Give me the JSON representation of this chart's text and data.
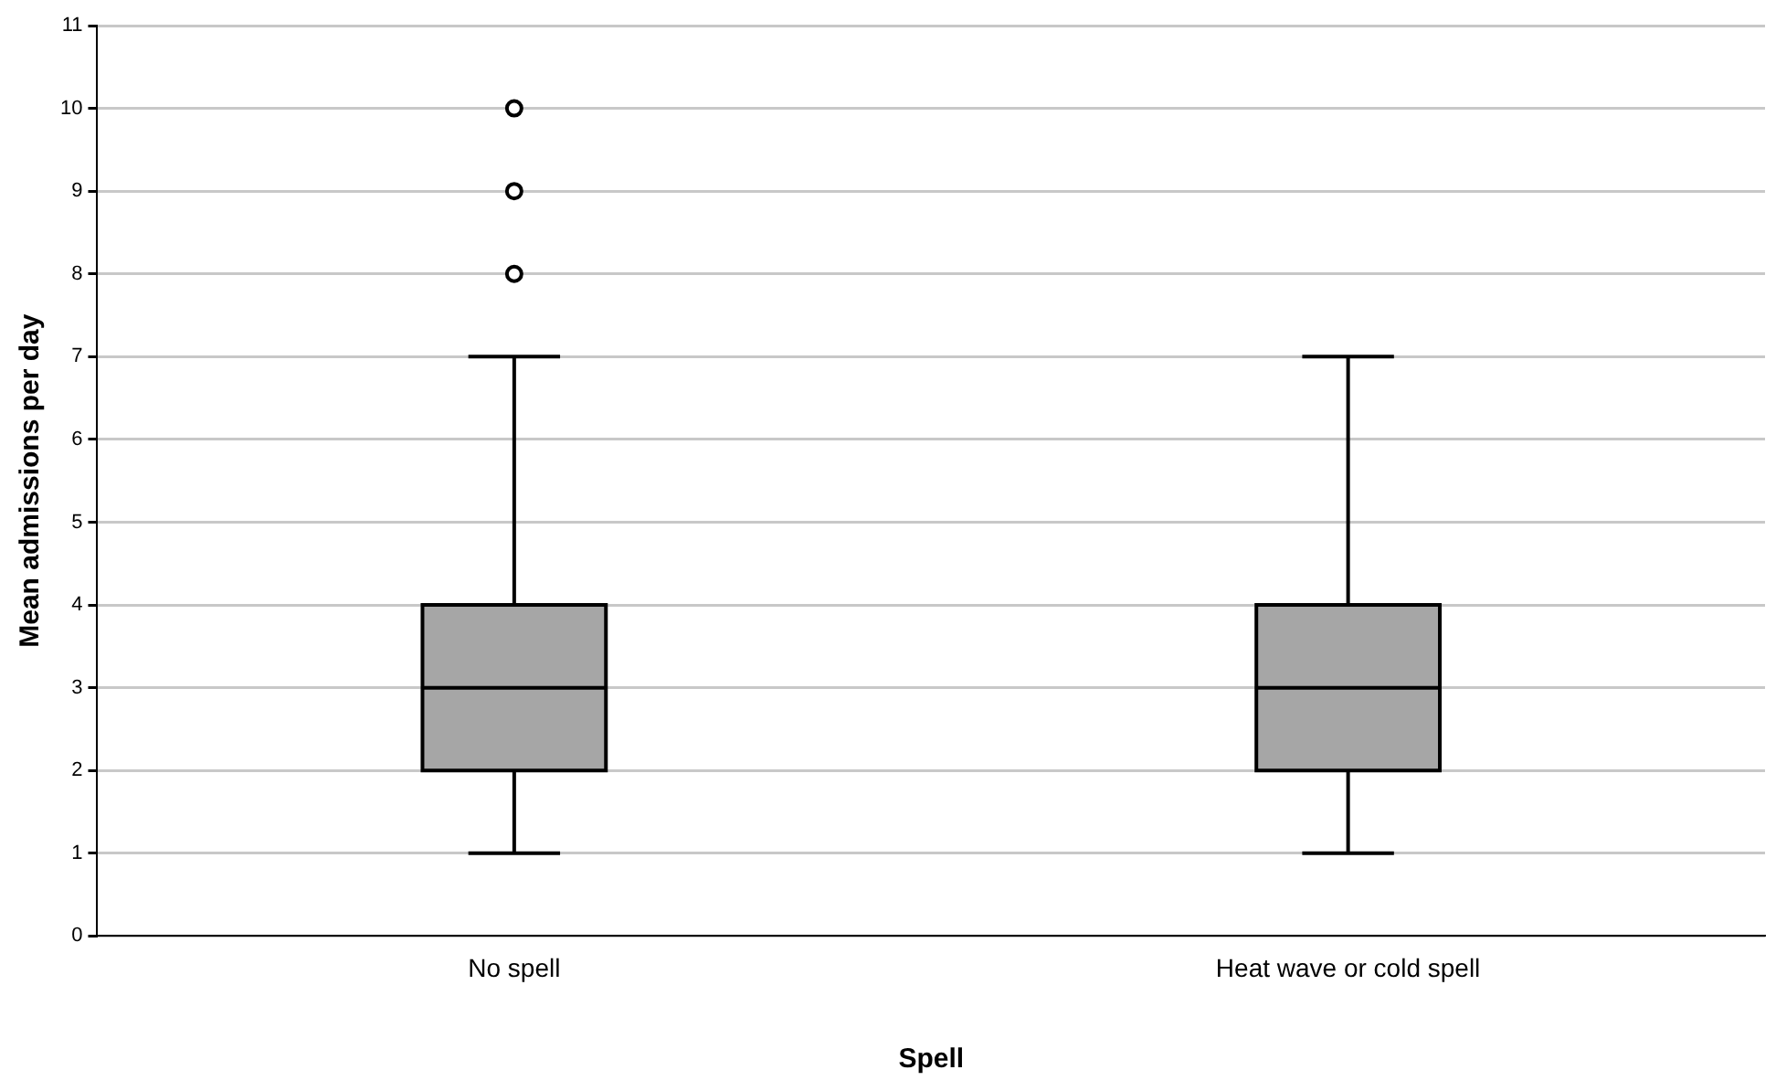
{
  "chart_data": {
    "type": "box",
    "xlabel": "Spell",
    "ylabel": "Mean admissions per day",
    "categories": [
      "No spell",
      "Heat wave or cold spell"
    ],
    "boxes": [
      {
        "low": 1,
        "q1": 2,
        "median": 3,
        "q3": 4,
        "high": 7,
        "outliers": [
          8,
          9,
          10
        ]
      },
      {
        "low": 1,
        "q1": 2,
        "median": 3,
        "q3": 4,
        "high": 7
      }
    ],
    "color": "#a6a6a6",
    "ylim": [
      0,
      11
    ],
    "yticks": [
      0,
      1,
      2,
      3,
      4,
      5,
      6,
      7,
      8,
      9,
      10,
      11
    ],
    "grid": "y",
    "marker": "circle"
  }
}
